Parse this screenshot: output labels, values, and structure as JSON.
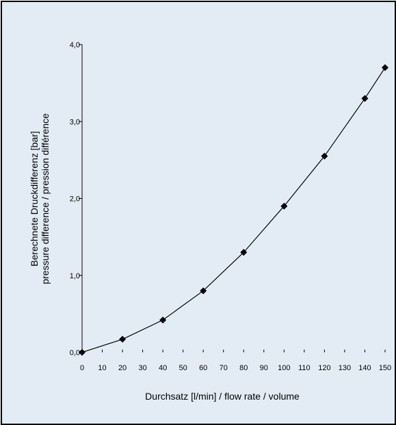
{
  "chart_data": {
    "type": "line",
    "title": "",
    "xlabel": "Durchsatz [l/min] / flow rate / volume",
    "ylabel_lines": [
      "Berechnete Druckdifferenz [bar]",
      "pressure difference / pression différence"
    ],
    "x": [
      0,
      20,
      40,
      60,
      80,
      100,
      120,
      140,
      150
    ],
    "series": [
      {
        "values": [
          0.0,
          0.17,
          0.42,
          0.8,
          1.3,
          1.9,
          2.55,
          3.3,
          3.7
        ]
      }
    ],
    "xlim": [
      0,
      150
    ],
    "ylim": [
      0,
      4
    ],
    "x_ticks": [
      0,
      10,
      20,
      30,
      40,
      50,
      60,
      70,
      80,
      90,
      100,
      110,
      120,
      130,
      140,
      150
    ],
    "x_tick_labels": [
      "0",
      "10",
      "20",
      "30",
      "40",
      "50",
      "60",
      "70",
      "80",
      "90",
      "100",
      "110",
      "120",
      "130",
      "140",
      "150"
    ],
    "y_ticks": [
      0,
      1,
      2,
      3,
      4
    ],
    "y_tick_labels": [
      "0,0",
      "1,0",
      "2,0",
      "3,0",
      "4,0"
    ],
    "grid": false,
    "marker": "diamond",
    "colors": {
      "background": "#e3ecf5",
      "line": "#000000",
      "marker": "#000000",
      "frame": "#000000"
    }
  }
}
